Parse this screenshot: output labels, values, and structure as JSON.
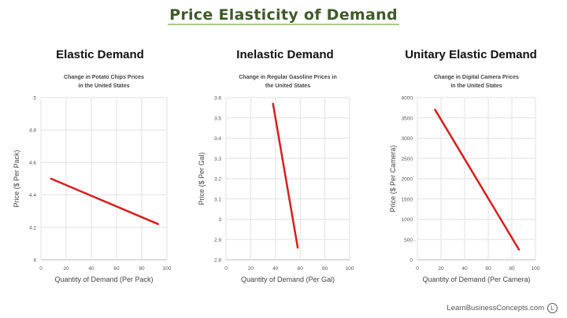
{
  "title": "Price Elasticity of Demand",
  "footer": {
    "text": "LearnBusinessConcepts.com",
    "logo_letter": "L"
  },
  "line_color": "#d81e1e",
  "title_color": "#3f5a2a",
  "chart_data": [
    {
      "type": "line",
      "heading": "Elastic Demand",
      "title": [
        "Change in Potato Chips Prices",
        "in the United States"
      ],
      "xlabel": "Quantity of Demand (Per Pack)",
      "ylabel": "Price ($ Per Pack)",
      "xlim": [
        0,
        100
      ],
      "ylim": [
        4,
        5
      ],
      "xticks": [
        "0",
        "20",
        "40",
        "60",
        "80",
        "100"
      ],
      "yticks": [
        "4",
        "4.2",
        "4.4",
        "4.6",
        "4.8",
        "5"
      ],
      "grid": true,
      "x": [
        8,
        93
      ],
      "y": [
        4.5,
        4.22
      ]
    },
    {
      "type": "line",
      "heading": "Inelastic Demand",
      "title": [
        "Change in Regular Gasoline Prices in",
        "the United States"
      ],
      "xlabel": "Quantity of Demand (Per Gal)",
      "ylabel": "Price ($ Per Gal)",
      "xlim": [
        0,
        100
      ],
      "ylim": [
        2.8,
        3.6
      ],
      "xticks": [
        "0",
        "20",
        "40",
        "60",
        "80",
        "100"
      ],
      "yticks": [
        "2.8",
        "2.9",
        "3",
        "3.1",
        "3.2",
        "3.3",
        "3.4",
        "3.5",
        "3.6"
      ],
      "grid": true,
      "x": [
        38,
        58
      ],
      "y": [
        3.57,
        2.86
      ]
    },
    {
      "type": "line",
      "heading": "Unitary Elastic Demand",
      "title": [
        "Change in Digital Camera Prices",
        "in the United States"
      ],
      "xlabel": "Quantity of Demand (Per Camera)",
      "ylabel": "Price ($ Per Camera)",
      "xlim": [
        0,
        100
      ],
      "ylim": [
        0,
        4000
      ],
      "xticks": [
        "0",
        "20",
        "40",
        "60",
        "80",
        "100"
      ],
      "yticks": [
        "0",
        "500",
        "1000",
        "1500",
        "2000",
        "2500",
        "3000",
        "3500",
        "4000"
      ],
      "grid": true,
      "x": [
        15,
        86
      ],
      "y": [
        3700,
        250
      ]
    }
  ]
}
